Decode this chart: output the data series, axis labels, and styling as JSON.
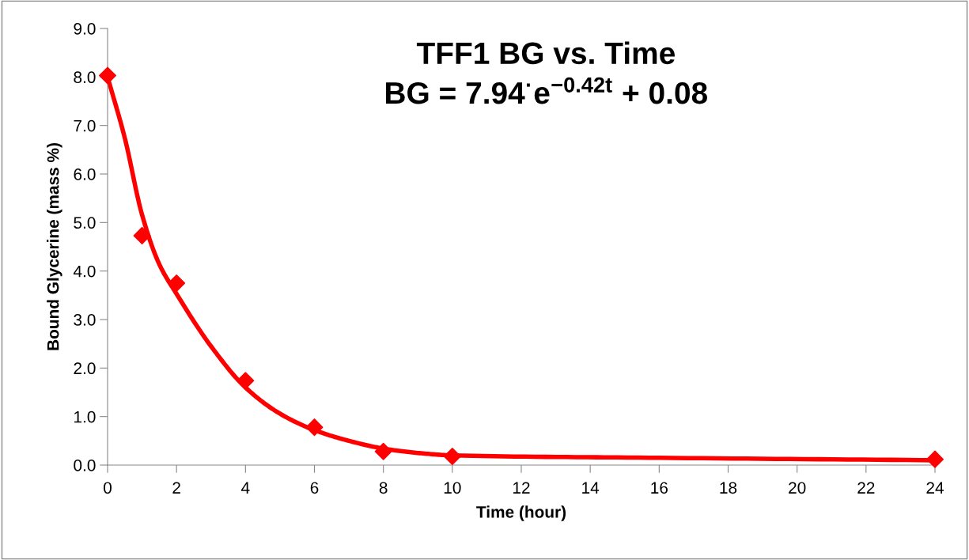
{
  "chart_data": {
    "type": "scatter",
    "title": "TFF1 BG vs. Time\nBG = 7.94$^{·}$e$^{−0.42t}$ + 0.08",
    "xlabel": "Time (hour)",
    "ylabel": "Bound Glycerine (mass %)",
    "xlim": [
      0,
      24
    ],
    "xticks": [
      0,
      2,
      4,
      6,
      8,
      10,
      12,
      14,
      16,
      18,
      20,
      22,
      24
    ],
    "ylim": [
      0,
      9
    ],
    "yticks": [
      {
        "value": 0,
        "label": "0.0"
      },
      {
        "value": 1,
        "label": "1.0"
      },
      {
        "value": 2,
        "label": "2.0"
      },
      {
        "value": 3,
        "label": "3.0"
      },
      {
        "value": 4,
        "label": "4.0"
      },
      {
        "value": 5,
        "label": "5.0"
      },
      {
        "value": 6,
        "label": "6.0"
      },
      {
        "value": 7,
        "label": "7.0"
      },
      {
        "value": 8,
        "label": "8.0"
      },
      {
        "value": 9,
        "label": "9.0"
      }
    ],
    "grid": false,
    "legend": false,
    "series": [
      {
        "type": "line",
        "color": "#ff0000",
        "marker": "none",
        "line_style": "solid",
        "x": [
          0,
          0.5,
          1,
          1.5,
          2,
          3,
          4,
          5,
          6,
          7,
          8,
          9,
          10,
          16,
          24
        ],
        "values": [
          8.0,
          6.74,
          5.16,
          4.14,
          3.53,
          2.45,
          1.6,
          1.06,
          0.72,
          0.5,
          0.34,
          0.25,
          0.2,
          0.15,
          0.1
        ]
      },
      {
        "color": "#ff0000",
        "marker": "diamond",
        "x": [
          0,
          1,
          2,
          4,
          6,
          8,
          10,
          24
        ],
        "values": [
          8.03,
          4.73,
          3.75,
          1.74,
          0.78,
          0.28,
          0.18,
          0.12
        ]
      }
    ]
  }
}
